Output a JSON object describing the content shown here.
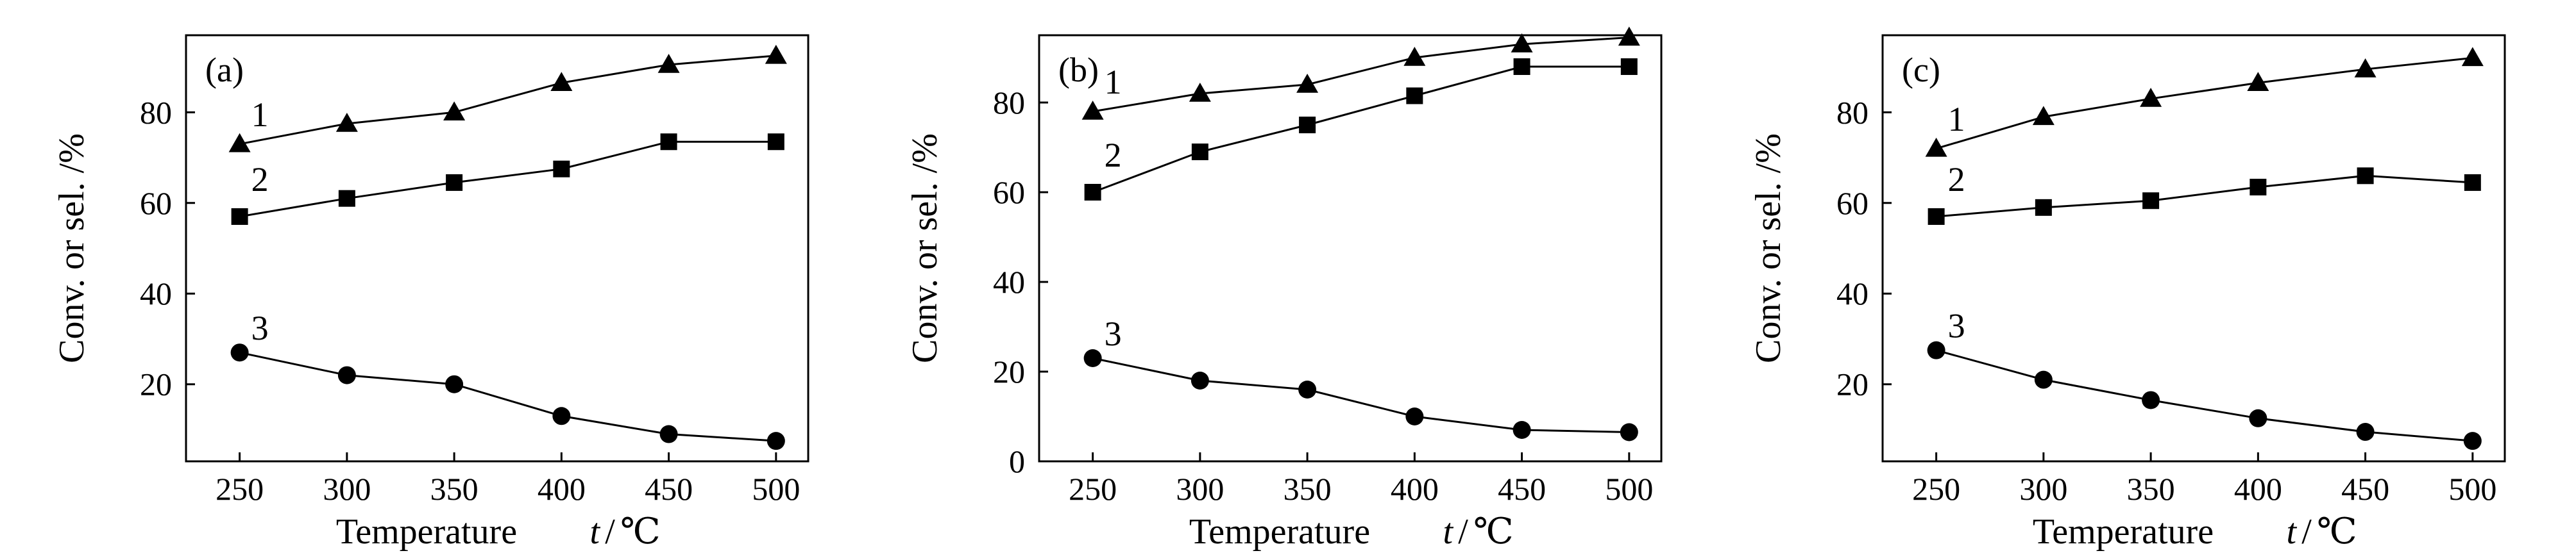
{
  "chart_data": [
    {
      "type": "line",
      "panel_label": "(a)",
      "xlabel": "Temperature",
      "xlabel_symbol": "t",
      "xlabel_unit": "℃",
      "ylabel": "Conv. or sel. /%",
      "x": [
        250,
        300,
        350,
        400,
        450,
        500
      ],
      "xlim": [
        225,
        515
      ],
      "ylim": [
        3,
        97
      ],
      "xticks": [
        250,
        300,
        350,
        400,
        450,
        500
      ],
      "yticks": [
        20,
        40,
        60,
        80
      ],
      "grid": false,
      "series": [
        {
          "name": "1",
          "marker": "triangle",
          "values": [
            73,
            77.5,
            80,
            86.5,
            90.5,
            92.5
          ]
        },
        {
          "name": "2",
          "marker": "square",
          "values": [
            57,
            61,
            64.5,
            67.5,
            73.5,
            73.5
          ]
        },
        {
          "name": "3",
          "marker": "circle",
          "values": [
            27,
            22,
            20,
            13,
            9,
            7.5
          ]
        }
      ]
    },
    {
      "type": "line",
      "panel_label": "(b)",
      "xlabel": "Temperature",
      "xlabel_symbol": "t",
      "xlabel_unit": "℃",
      "ylabel": "Conv. or sel. /%",
      "x": [
        250,
        300,
        350,
        400,
        450,
        500
      ],
      "xlim": [
        225,
        515
      ],
      "ylim": [
        0,
        95
      ],
      "xticks": [
        250,
        300,
        350,
        400,
        450,
        500
      ],
      "yticks": [
        0,
        20,
        40,
        60,
        80
      ],
      "grid": false,
      "series": [
        {
          "name": "1",
          "marker": "triangle",
          "values": [
            78,
            82,
            84,
            90,
            93,
            94.5
          ]
        },
        {
          "name": "2",
          "marker": "square",
          "values": [
            60,
            69,
            75,
            81.5,
            88,
            88
          ]
        },
        {
          "name": "3",
          "marker": "circle",
          "values": [
            23,
            18,
            16,
            10,
            7,
            6.5
          ]
        }
      ]
    },
    {
      "type": "line",
      "panel_label": "(c)",
      "xlabel": "Temperature",
      "xlabel_symbol": "t",
      "xlabel_unit": "℃",
      "ylabel": "Conv. or sel. /%",
      "x": [
        250,
        300,
        350,
        400,
        450,
        500
      ],
      "xlim": [
        225,
        515
      ],
      "ylim": [
        3,
        97
      ],
      "xticks": [
        250,
        300,
        350,
        400,
        450,
        500
      ],
      "yticks": [
        20,
        40,
        60,
        80
      ],
      "grid": false,
      "series": [
        {
          "name": "1",
          "marker": "triangle",
          "values": [
            72,
            79,
            83,
            86.5,
            89.5,
            92
          ]
        },
        {
          "name": "2",
          "marker": "square",
          "values": [
            57,
            59,
            60.5,
            63.5,
            66,
            64.5
          ]
        },
        {
          "name": "3",
          "marker": "circle",
          "values": [
            27.5,
            21,
            16.5,
            12.5,
            9.5,
            7.5
          ]
        }
      ]
    }
  ]
}
